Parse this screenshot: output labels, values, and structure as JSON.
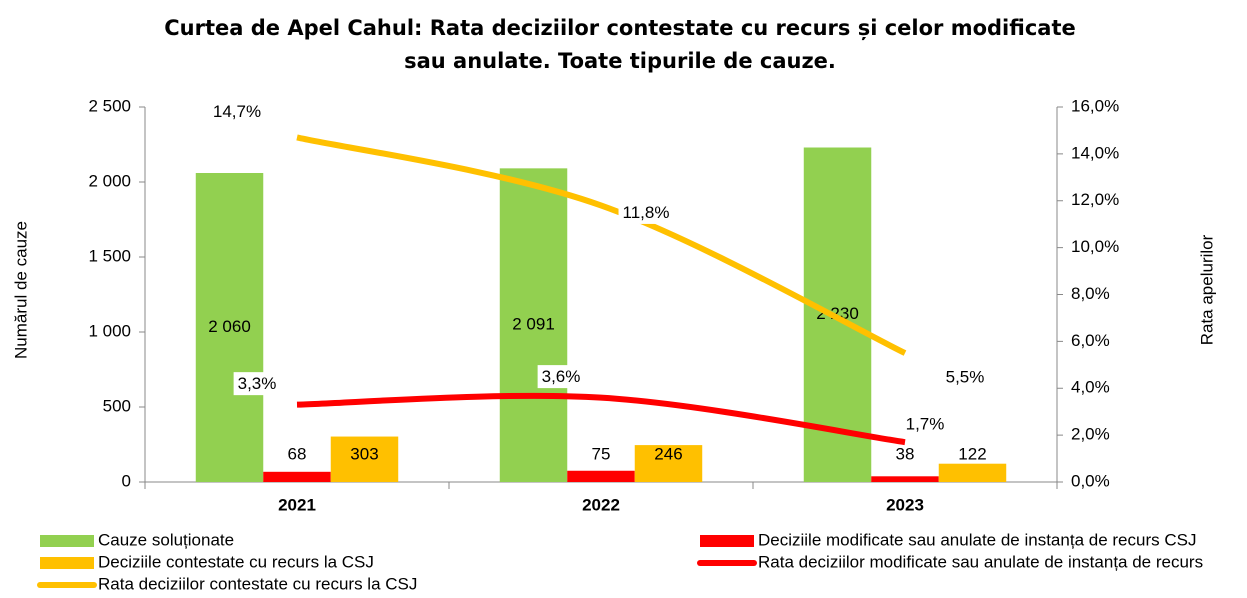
{
  "chart_data": {
    "type": "bar",
    "title": "Curtea de Apel Cahul: Rata deciziilor contestate cu recurs și celor modificate sau anulate. Toate tipurile de cauze.",
    "y_label": "Numărul de cauze",
    "y2_label": "Rata apelurilor",
    "categories": [
      "2021",
      "2022",
      "2023"
    ],
    "ylim": [
      0,
      2500
    ],
    "yticks": [
      0,
      500,
      {
        "value": 1000,
        "label": "1 000"
      },
      {
        "value": 1500,
        "label": "1 500"
      },
      {
        "value": 2000,
        "label": "2 000"
      },
      {
        "value": 2500,
        "label": "2 500"
      }
    ],
    "y2lim": [
      0,
      16
    ],
    "y2ticks": [
      {
        "value": 0,
        "label": "0,0%"
      },
      {
        "value": 2,
        "label": "2,0%"
      },
      {
        "value": 4,
        "label": "4,0%"
      },
      {
        "value": 6,
        "label": "6,0%"
      },
      {
        "value": 8,
        "label": "8,0%"
      },
      {
        "value": 10,
        "label": "10,0%"
      },
      {
        "value": 12,
        "label": "12,0%"
      },
      {
        "value": 14,
        "label": "14,0%"
      },
      {
        "value": 16,
        "label": "16,0%"
      }
    ],
    "grid": false,
    "series": [
      {
        "name": "Cauze soluționate",
        "type": "bar",
        "color": "#92d050",
        "values": [
          2060,
          2091,
          2230
        ],
        "value_labels": [
          "2 060",
          "2 091",
          "2 230"
        ]
      },
      {
        "name": "Deciziile modificate sau anulate de instanța de recurs CSJ",
        "type": "bar",
        "color": "#ff0000",
        "values": [
          68,
          75,
          38
        ]
      },
      {
        "name": "Deciziile contestate cu recurs la CSJ",
        "type": "bar",
        "color": "#ffc000",
        "values": [
          303,
          246,
          122
        ]
      },
      {
        "name": "Rata deciziilor modificate sau anulate de instanța de recurs",
        "type": "line",
        "axis": "y2",
        "color": "#ff0000",
        "values": [
          3.3,
          3.6,
          1.7
        ],
        "value_labels": [
          "3,3%",
          "3,6%",
          "1,7%"
        ]
      },
      {
        "name": "Rata deciziilor contestate cu recurs la CSJ",
        "type": "line",
        "axis": "y2",
        "color": "#ffc000",
        "values": [
          14.7,
          11.8,
          5.5
        ],
        "value_labels": [
          "14,7%",
          "11,8%",
          "5,5%"
        ]
      }
    ]
  }
}
